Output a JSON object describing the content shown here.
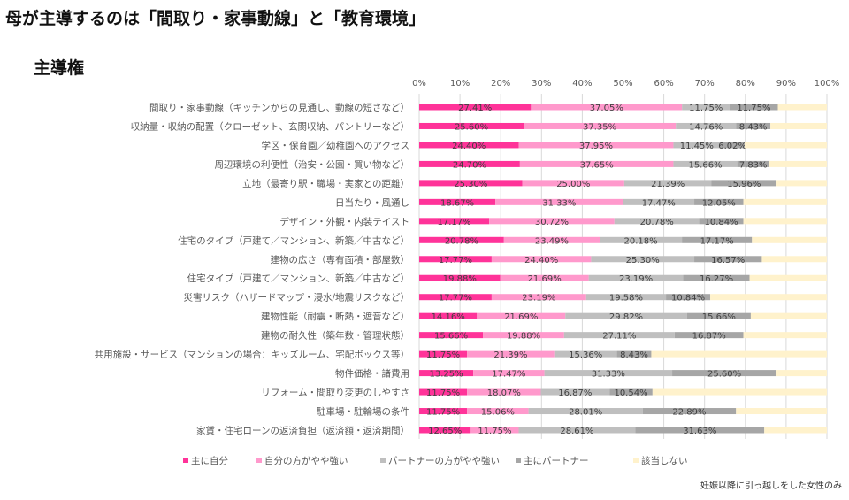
{
  "title": "母が主導するのは「間取り・家事動線」と「教育環境」",
  "subtitle": "主導権",
  "note": "妊娠以降に引っ越しをした女性のみ",
  "chart_data": {
    "type": "bar",
    "orientation": "horizontal",
    "stacked": "percent",
    "xlim": [
      0,
      100
    ],
    "x_ticks": [
      "0%",
      "10%",
      "20%",
      "30%",
      "40%",
      "50%",
      "60%",
      "70%",
      "80%",
      "90%",
      "100%"
    ],
    "grid": true,
    "legend_position": "bottom",
    "categories": [
      "間取り・家事動線（キッチンからの見通し、動線の短さなど）",
      "収納量・収納の配置（クローゼット、玄関収納、パントリーなど）",
      "学区・保育園／幼稚園へのアクセス",
      "周辺環境の利便性（治安・公園・買い物など）",
      "立地（最寄り駅・職場・実家との距離）",
      "日当たり・風通し",
      "デザイン・外観・内装テイスト",
      "住宅のタイプ（戸建て／マンション、新築／中古など）",
      "建物の広さ（専有面積・部屋数）",
      "住宅タイプ（戸建て／マンション、新築／中古など）",
      "災害リスク（ハザードマップ・浸水/地震リスクなど）",
      "建物性能（耐震・断熱・遮音など）",
      "建物の耐久性（築年数・管理状態）",
      "共用施設・サービス（マンションの場合：キッズルーム、宅配ボックス等）",
      "物件価格・諸費用",
      "リフォーム・間取り変更のしやすさ",
      "駐車場・駐輪場の条件",
      "家賃・住宅ローンの返済負担（返済額・返済期間）"
    ],
    "series": [
      {
        "name": "主に自分",
        "color": "#ff3399",
        "labeled": true,
        "values": [
          27.41,
          25.6,
          24.4,
          24.7,
          25.3,
          18.67,
          17.17,
          20.78,
          17.77,
          19.88,
          17.77,
          14.16,
          15.66,
          11.75,
          13.25,
          11.75,
          11.75,
          12.65
        ]
      },
      {
        "name": "自分の方がやや強い",
        "color": "#ff99cc",
        "labeled": true,
        "values": [
          37.05,
          37.35,
          37.95,
          37.65,
          25.0,
          31.33,
          30.72,
          23.49,
          24.4,
          21.69,
          23.19,
          21.69,
          19.88,
          21.39,
          17.47,
          18.07,
          15.06,
          11.75
        ]
      },
      {
        "name": "パートナーの方がやや強い",
        "color": "#bfbfbf",
        "labeled": true,
        "values": [
          11.75,
          14.76,
          11.45,
          15.66,
          21.39,
          17.47,
          20.78,
          20.18,
          25.3,
          23.19,
          19.58,
          29.82,
          27.11,
          15.36,
          31.33,
          16.87,
          28.01,
          28.61
        ]
      },
      {
        "name": "主にパートナー",
        "color": "#a6a6a6",
        "labeled": true,
        "values": [
          11.75,
          8.43,
          6.02,
          7.83,
          15.96,
          12.05,
          10.84,
          17.17,
          16.57,
          16.27,
          10.84,
          15.66,
          16.87,
          8.43,
          25.6,
          10.54,
          22.89,
          31.63
        ]
      },
      {
        "name": "該当しない",
        "color": "#fff2cc",
        "labeled": false,
        "values": [
          12.04,
          13.86,
          20.18,
          14.16,
          12.35,
          20.48,
          20.49,
          18.38,
          15.96,
          18.97,
          28.62,
          18.67,
          20.48,
          43.07,
          12.35,
          42.77,
          22.29,
          15.36
        ]
      }
    ]
  }
}
